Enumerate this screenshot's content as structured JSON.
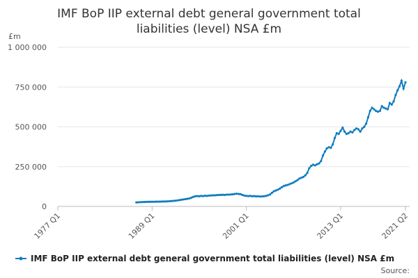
{
  "chart_data": {
    "type": "line",
    "title": "IMF BoP IIP external debt general government total liabilities (level) NSA £m",
    "y_unit": "£m",
    "source": "Source:",
    "x": [
      1987,
      1987.25,
      1987.5,
      1987.75,
      1988,
      1988.25,
      1988.5,
      1988.75,
      1989,
      1989.25,
      1989.5,
      1989.75,
      1990,
      1990.25,
      1990.5,
      1990.75,
      1991,
      1991.25,
      1991.5,
      1991.75,
      1992,
      1992.25,
      1992.5,
      1992.75,
      1993,
      1993.25,
      1993.5,
      1993.75,
      1994,
      1994.25,
      1994.5,
      1994.75,
      1995,
      1995.25,
      1995.5,
      1995.75,
      1996,
      1996.25,
      1996.5,
      1996.75,
      1997,
      1997.25,
      1997.5,
      1997.75,
      1998,
      1998.25,
      1998.5,
      1998.75,
      1999,
      1999.25,
      1999.5,
      1999.75,
      2000,
      2000.25,
      2000.5,
      2000.75,
      2001,
      2001.25,
      2001.5,
      2001.75,
      2002,
      2002.25,
      2002.5,
      2002.75,
      2003,
      2003.25,
      2003.5,
      2003.75,
      2004,
      2004.25,
      2004.5,
      2004.75,
      2005,
      2005.25,
      2005.5,
      2005.75,
      2006,
      2006.25,
      2006.5,
      2006.75,
      2007,
      2007.25,
      2007.5,
      2007.75,
      2008,
      2008.25,
      2008.5,
      2008.75,
      2009,
      2009.25,
      2009.5,
      2009.75,
      2010,
      2010.25,
      2010.5,
      2010.75,
      2011,
      2011.25,
      2011.5,
      2011.75,
      2012,
      2012.25,
      2012.5,
      2012.75,
      2013,
      2013.25,
      2013.5,
      2013.75,
      2014,
      2014.25,
      2014.5,
      2014.75,
      2015,
      2015.25,
      2015.5,
      2015.75,
      2016,
      2016.25,
      2016.5,
      2016.75,
      2017,
      2017.25,
      2017.5,
      2017.75,
      2018,
      2018.25,
      2018.5,
      2018.75,
      2019,
      2019.25,
      2019.5,
      2019.75,
      2020,
      2020.25,
      2020.5,
      2020.75,
      2021,
      2021.25
    ],
    "series": [
      {
        "name": "IMF BoP IIP external debt general government total liabilities (level) NSA £m",
        "color": "#0f7cbf",
        "values": [
          25000,
          26000,
          27000,
          27500,
          28000,
          28500,
          29000,
          29000,
          29500,
          29000,
          30000,
          30000,
          30000,
          30500,
          31000,
          31000,
          32000,
          33000,
          34000,
          35000,
          36000,
          38000,
          40000,
          42000,
          44000,
          46000,
          48000,
          50000,
          55000,
          60000,
          64000,
          65000,
          64000,
          66000,
          65000,
          67000,
          66000,
          68000,
          69000,
          70000,
          70000,
          71000,
          72000,
          72000,
          73000,
          72000,
          74000,
          74000,
          75000,
          76000,
          78000,
          80000,
          78000,
          77000,
          72000,
          68000,
          66000,
          65000,
          66000,
          64000,
          65000,
          63000,
          64000,
          62000,
          63000,
          64000,
          66000,
          70000,
          75000,
          85000,
          95000,
          100000,
          105000,
          112000,
          120000,
          128000,
          132000,
          135000,
          140000,
          145000,
          150000,
          158000,
          165000,
          175000,
          180000,
          185000,
          195000,
          210000,
          240000,
          255000,
          262000,
          258000,
          265000,
          270000,
          285000,
          320000,
          345000,
          365000,
          372000,
          368000,
          390000,
          430000,
          460000,
          455000,
          475000,
          495000,
          470000,
          455000,
          460000,
          470000,
          465000,
          480000,
          490000,
          485000,
          470000,
          490000,
          500000,
          520000,
          560000,
          600000,
          620000,
          610000,
          600000,
          595000,
          600000,
          630000,
          620000,
          615000,
          610000,
          650000,
          640000,
          660000,
          700000,
          730000,
          755000,
          790000,
          740000,
          780000
        ]
      }
    ],
    "xlim": [
      1977,
      2021.25
    ],
    "xticks": [
      {
        "value": 1977,
        "label": "1977 Q1"
      },
      {
        "value": 1989,
        "label": "1989 Q1"
      },
      {
        "value": 2001,
        "label": "2001 Q1"
      },
      {
        "value": 2013,
        "label": "2013 Q1"
      },
      {
        "value": 2021.25,
        "label": "2021 Q2"
      }
    ],
    "ylim": [
      0,
      1000000
    ],
    "yticks": [
      0,
      {
        "value": 250000,
        "label": "250 000"
      },
      {
        "value": 500000,
        "label": "500 000"
      },
      {
        "value": 750000,
        "label": "750 000"
      },
      {
        "value": 1000000,
        "label": "1 000 000"
      }
    ],
    "grid": true
  }
}
